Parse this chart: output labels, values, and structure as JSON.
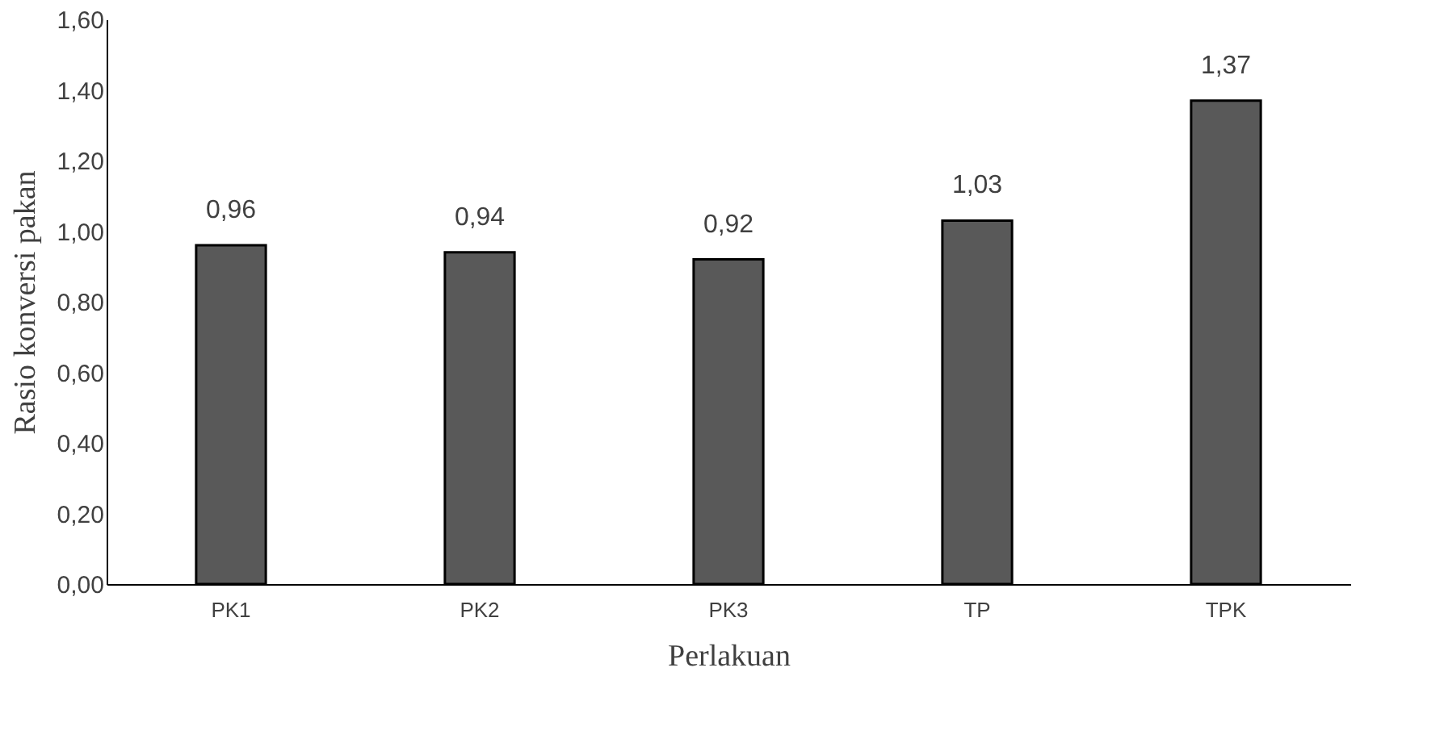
{
  "chart_data": {
    "type": "bar",
    "xlabel": "Perlakuan",
    "ylabel": "Rasio konversi pakan",
    "categories": [
      "PK1",
      "PK2",
      "PK3",
      "TP",
      "TPK"
    ],
    "values": [
      0.96,
      0.94,
      0.92,
      1.03,
      1.37
    ],
    "value_labels": [
      "0,96",
      "0,94",
      "0,92",
      "1,03",
      "1,37"
    ],
    "color": "#595959",
    "ylim": [
      0,
      1.6
    ],
    "yticks": [
      {
        "value": 0,
        "label": "0,00"
      },
      {
        "value": 0.2,
        "label": "0,20"
      },
      {
        "value": 0.4,
        "label": "0,40"
      },
      {
        "value": 0.6,
        "label": "0,60"
      },
      {
        "value": 0.8,
        "label": "0,80"
      },
      {
        "value": 1.0,
        "label": "1,00"
      },
      {
        "value": 1.2,
        "label": "1,20"
      },
      {
        "value": 1.4,
        "label": "1,40"
      },
      {
        "value": 1.6,
        "label": "1,60"
      }
    ],
    "grid": false
  }
}
